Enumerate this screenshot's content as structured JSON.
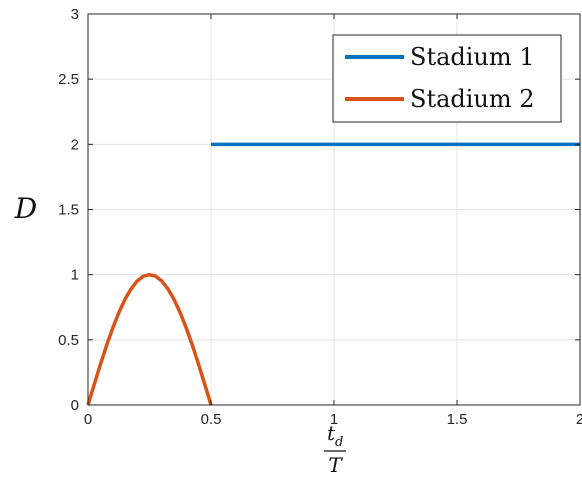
{
  "chart_data": {
    "type": "line",
    "title": "",
    "xlabel": {
      "numerator": "t",
      "numerator_sub": "d",
      "denominator": "T"
    },
    "ylabel": "D",
    "xlim": [
      0,
      2
    ],
    "ylim": [
      0,
      3
    ],
    "x_ticks": [
      "0",
      "0.5",
      "1",
      "1.5",
      "2"
    ],
    "y_ticks": [
      "0",
      "0.5",
      "1",
      "1.5",
      "2",
      "2.5",
      "3"
    ],
    "grid": true,
    "legend_position": "top-right",
    "series": [
      {
        "name": "Stadium 1",
        "color": "#0072BD",
        "x": [
          0.5,
          2.0
        ],
        "y": [
          2.0,
          2.0
        ]
      },
      {
        "name": "Stadium 2",
        "color": "#D95319",
        "x": [
          0,
          0.025,
          0.05,
          0.075,
          0.1,
          0.125,
          0.15,
          0.175,
          0.2,
          0.225,
          0.25,
          0.275,
          0.3,
          0.325,
          0.35,
          0.375,
          0.4,
          0.425,
          0.45,
          0.475,
          0.5
        ],
        "y": [
          0,
          0.156,
          0.309,
          0.454,
          0.588,
          0.707,
          0.809,
          0.891,
          0.951,
          0.988,
          1.0,
          0.988,
          0.951,
          0.891,
          0.809,
          0.707,
          0.588,
          0.454,
          0.309,
          0.156,
          0.0
        ]
      }
    ]
  }
}
